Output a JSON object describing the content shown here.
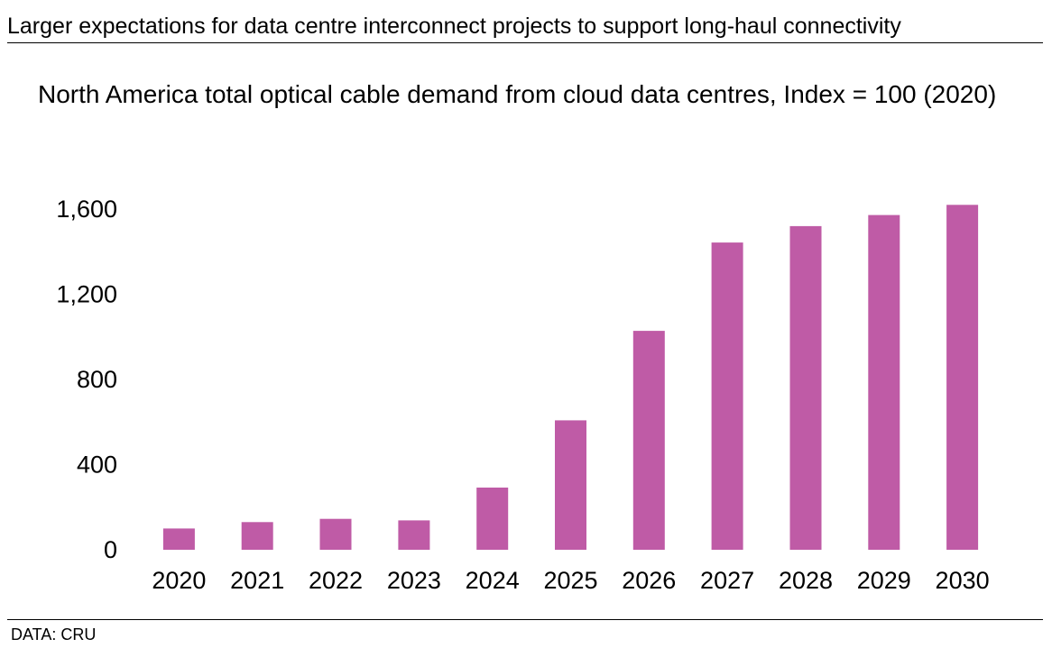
{
  "headline": "Larger expectations for data centre interconnect projects to support long-haul connectivity",
  "source": "DATA: CRU",
  "colors": {
    "bar": "#bf5ba6",
    "rule": "#000000"
  },
  "chart_data": {
    "type": "bar",
    "title": "North America total optical cable demand from cloud data centres, Index = 100 (2020)",
    "xlabel": "",
    "ylabel": "",
    "categories": [
      "2020",
      "2021",
      "2022",
      "2023",
      "2024",
      "2025",
      "2026",
      "2027",
      "2028",
      "2029",
      "2030"
    ],
    "values": [
      100,
      130,
      145,
      138,
      292,
      608,
      1028,
      1443,
      1520,
      1572,
      1620
    ],
    "ylim": [
      0,
      1600
    ],
    "yticks": [
      0,
      400,
      800,
      1200,
      1600
    ],
    "ytick_labels": [
      "0",
      "400",
      "800",
      "1,200",
      "1,600"
    ],
    "grid": false,
    "legend": "none"
  }
}
